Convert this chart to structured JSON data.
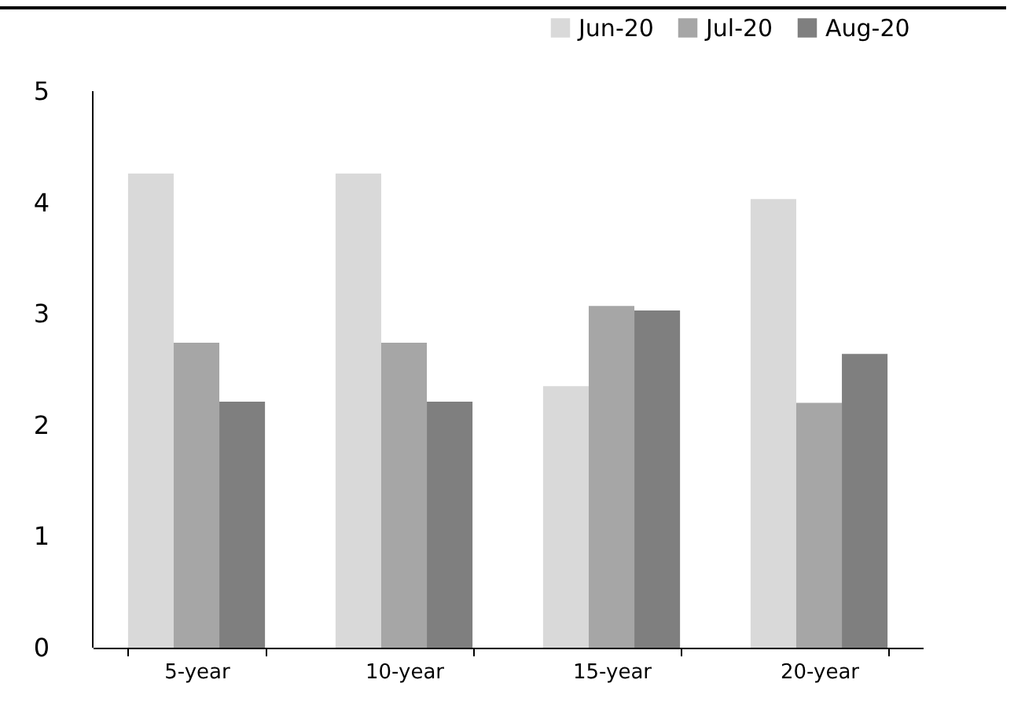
{
  "chart_data": {
    "type": "bar",
    "categories": [
      "5-year",
      "10-year",
      "15-year",
      "20-year"
    ],
    "series": [
      {
        "name": "Jun-20",
        "color": "#d9d9d9",
        "values": [
          4.26,
          4.26,
          2.35,
          4.03
        ]
      },
      {
        "name": "Jul-20",
        "color": "#a6a6a6",
        "values": [
          2.74,
          2.74,
          3.07,
          2.2
        ]
      },
      {
        "name": "Aug-20",
        "color": "#7f7f7f",
        "values": [
          2.21,
          2.21,
          3.03,
          2.64
        ]
      }
    ],
    "ylim": [
      0,
      5
    ],
    "yticks": [
      0,
      1,
      2,
      3,
      4,
      5
    ],
    "grid": false,
    "legend": "top right"
  }
}
